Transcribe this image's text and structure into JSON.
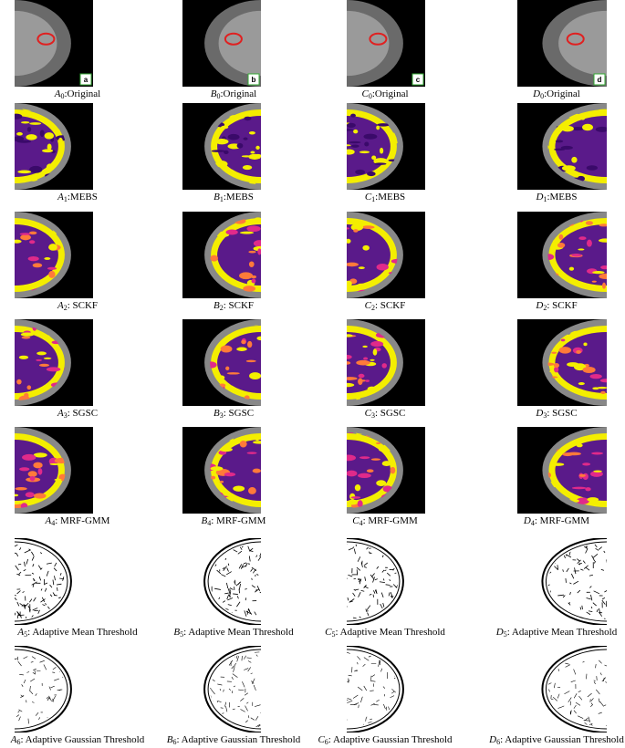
{
  "figure": {
    "rows": [
      {
        "panels": [
          {
            "letter": "A",
            "index": "0",
            "suffix": ":Original",
            "tag": "a"
          },
          {
            "letter": "B",
            "index": "0",
            "suffix": ":Original",
            "tag": "b"
          },
          {
            "letter": "C",
            "index": "0",
            "suffix": ":Original",
            "tag": "c"
          },
          {
            "letter": "D",
            "index": "0",
            "suffix": ":Original",
            "tag": "d"
          }
        ]
      },
      {
        "panels": [
          {
            "letter": "A",
            "index": "1",
            "suffix": ":MEBS"
          },
          {
            "letter": "B",
            "index": "1",
            "suffix": ":MEBS"
          },
          {
            "letter": "C",
            "index": "1",
            "suffix": ":MEBS"
          },
          {
            "letter": "D",
            "index": "1",
            "suffix": ":MEBS"
          }
        ]
      },
      {
        "panels": [
          {
            "letter": "A",
            "index": "2",
            "suffix": ": SCKF"
          },
          {
            "letter": "B",
            "index": "2",
            "suffix": ": SCKF"
          },
          {
            "letter": "C",
            "index": "2",
            "suffix": ": SCKF"
          },
          {
            "letter": "D",
            "index": "2",
            "suffix": ": SCKF"
          }
        ]
      },
      {
        "panels": [
          {
            "letter": "A",
            "index": "3",
            "suffix": ": SGSC"
          },
          {
            "letter": "B",
            "index": "3",
            "suffix": ": SGSC"
          },
          {
            "letter": "C",
            "index": "3",
            "suffix": ": SGSC"
          },
          {
            "letter": "D",
            "index": "3",
            "suffix": ": SGSC"
          }
        ]
      },
      {
        "panels": [
          {
            "letter": "A",
            "index": "4",
            "suffix": ": MRF-GMM"
          },
          {
            "letter": "B",
            "index": "4",
            "suffix": ": MRF-GMM"
          },
          {
            "letter": "C",
            "index": "4",
            "suffix": ": MRF-GMM"
          },
          {
            "letter": "D",
            "index": "4",
            "suffix": ": MRF-GMM"
          }
        ]
      },
      {
        "panels": [
          {
            "letter": "A",
            "index": "5",
            "suffix": ": Adaptive Mean Threshold"
          },
          {
            "letter": "B",
            "index": "5",
            "suffix": ": Adaptive Mean Threshold"
          },
          {
            "letter": "C",
            "index": "5",
            "suffix": ": Adaptive Mean Threshold"
          },
          {
            "letter": "D",
            "index": "5",
            "suffix": ": Adaptive Mean Threshold"
          }
        ]
      },
      {
        "panels": [
          {
            "letter": "A",
            "index": "6",
            "suffix": ": Adaptive Gaussian Threshold"
          },
          {
            "letter": "B",
            "index": "6",
            "suffix": ": Adaptive Gaussian Threshold"
          },
          {
            "letter": "C",
            "index": "6",
            "suffix": ": Adaptive Gaussian Threshold"
          },
          {
            "letter": "D",
            "index": "6",
            "suffix": ": Adaptive Gaussian Threshold"
          }
        ]
      }
    ]
  }
}
